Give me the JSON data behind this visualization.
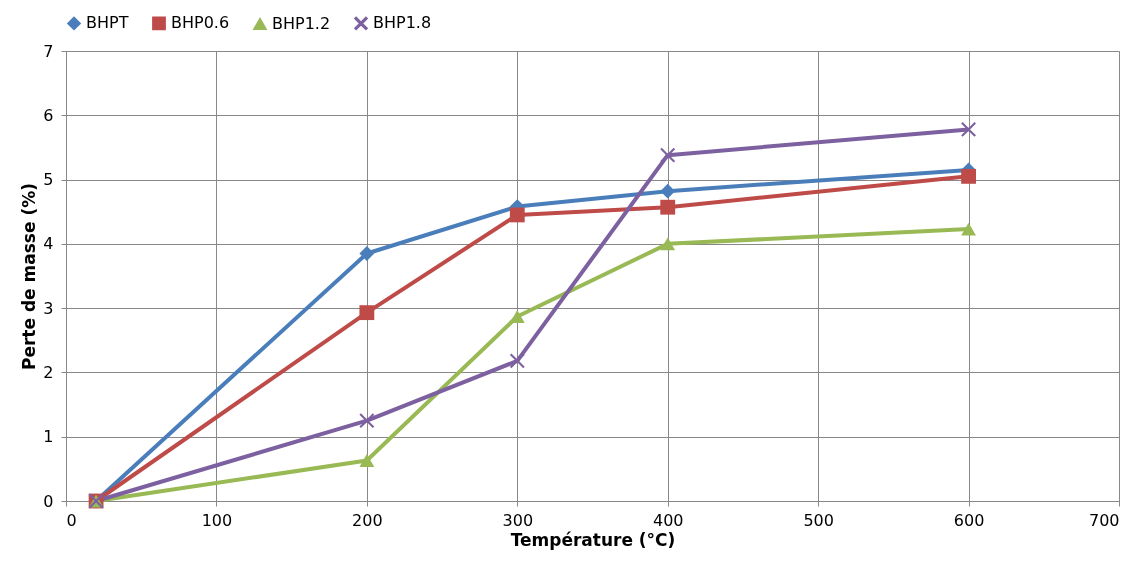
{
  "chart_data": {
    "type": "line",
    "xlabel": "Température (°C)",
    "ylabel": "Perte de masse (%)",
    "x": [
      20,
      200,
      300,
      400,
      600
    ],
    "series": [
      {
        "name": "BHPT",
        "color": "#4a7ebb",
        "marker": "diamond",
        "values": [
          0,
          3.85,
          4.58,
          4.82,
          5.15
        ]
      },
      {
        "name": "BHP0.6",
        "color": "#be4b48",
        "marker": "square",
        "values": [
          0,
          2.93,
          4.45,
          4.57,
          5.05
        ]
      },
      {
        "name": "BHP1.2",
        "color": "#98b954",
        "marker": "triangle",
        "values": [
          0,
          0.63,
          2.87,
          4.0,
          4.23
        ]
      },
      {
        "name": "BHP1.8",
        "color": "#7d60a0",
        "marker": "cross",
        "values": [
          0,
          1.25,
          2.18,
          5.38,
          5.78
        ]
      }
    ],
    "xlim": [
      0,
      700
    ],
    "xticks": [
      0,
      100,
      200,
      300,
      400,
      500,
      600,
      700
    ],
    "ylim": [
      0,
      7
    ],
    "yticks": [
      0,
      1,
      2,
      3,
      4,
      5,
      6,
      7
    ],
    "grid": true,
    "legend": "top",
    "line_style": "solid"
  }
}
